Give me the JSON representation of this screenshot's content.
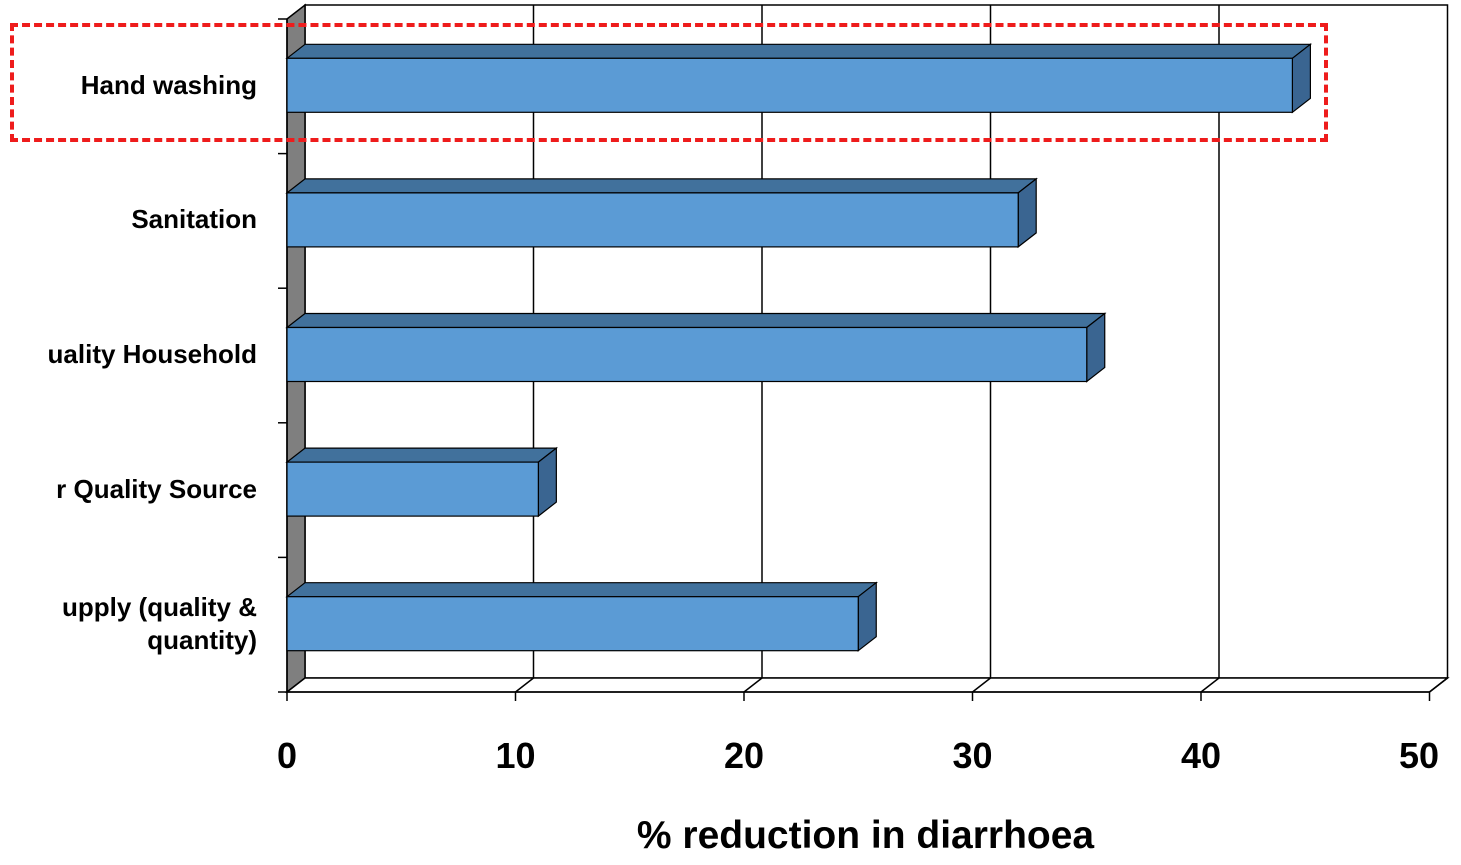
{
  "chart_data": {
    "type": "bar",
    "orientation": "horizontal",
    "style": "3d",
    "categories": [
      "Hand washing",
      "Sanitation",
      "Water Quality Household",
      "Water Quality Source",
      "Water supply (quality & quantity)"
    ],
    "visible_category_text": [
      "Hand washing",
      "Sanitation",
      "uality Household",
      "r Quality Source",
      "upply (quality &\nquantity)"
    ],
    "values": [
      44,
      32,
      35,
      11,
      25
    ],
    "xlabel": "% reduction in diarrhoea",
    "xlim": [
      0,
      50
    ],
    "xticks": [
      "0",
      "10",
      "20",
      "30",
      "40",
      "50"
    ],
    "grid": "vertical",
    "highlighted_category": "Hand washing",
    "colors": {
      "bar_front": "#5b9bd5",
      "bar_side": "#3a6591",
      "bar_top": "#41719c",
      "wall_shade": "#7f7f7f",
      "highlight": "#ee1c1c"
    }
  }
}
